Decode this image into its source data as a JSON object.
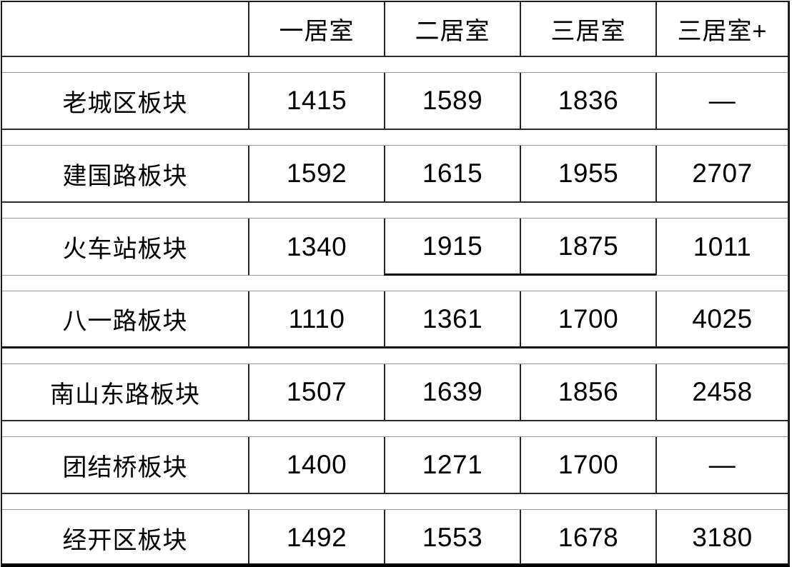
{
  "table": {
    "columns": [
      "",
      "一居室",
      "二居室",
      "三居室",
      "三居室+"
    ],
    "rows": [
      {
        "label": "老城区板块",
        "values": [
          "1415",
          "1589",
          "1836",
          "—"
        ]
      },
      {
        "label": "建国路板块",
        "values": [
          "1592",
          "1615",
          "1955",
          "2707"
        ]
      },
      {
        "label": "火车站板块",
        "values": [
          "1340",
          "1915",
          "1875",
          "1011"
        ]
      },
      {
        "label": "八一路板块",
        "values": [
          "1110",
          "1361",
          "1700",
          "4025"
        ]
      },
      {
        "label": "南山东路板块",
        "values": [
          "1507",
          "1639",
          "1856",
          "2458"
        ]
      },
      {
        "label": "团结桥板块",
        "values": [
          "1400",
          "1271",
          "1700",
          "—"
        ]
      },
      {
        "label": "经开区板块",
        "values": [
          "1492",
          "1553",
          "1678",
          "3180"
        ]
      }
    ],
    "empty_value_symbol": "—",
    "colors": {
      "background": "#ffffff",
      "text": "#000000",
      "border_dark": "#1c1c1c",
      "border_gray": "#9b9b9b"
    }
  },
  "chart_data": {
    "type": "table",
    "title": "",
    "categories": [
      "一居室",
      "二居室",
      "三居室",
      "三居室+"
    ],
    "series": [
      {
        "name": "老城区板块",
        "values": [
          1415,
          1589,
          1836,
          null
        ]
      },
      {
        "name": "建国路板块",
        "values": [
          1592,
          1615,
          1955,
          2707
        ]
      },
      {
        "name": "火车站板块",
        "values": [
          1340,
          1915,
          1875,
          1011
        ]
      },
      {
        "name": "八一路板块",
        "values": [
          1110,
          1361,
          1700,
          4025
        ]
      },
      {
        "name": "南山东路板块",
        "values": [
          1507,
          1639,
          1856,
          2458
        ]
      },
      {
        "name": "团结桥板块",
        "values": [
          1400,
          1271,
          1700,
          null
        ]
      },
      {
        "name": "经开区板块",
        "values": [
          1492,
          1553,
          1678,
          3180
        ]
      }
    ],
    "layout_hints": {
      "grid": "on",
      "row_spacer_bands": true,
      "text_align": "center"
    }
  }
}
